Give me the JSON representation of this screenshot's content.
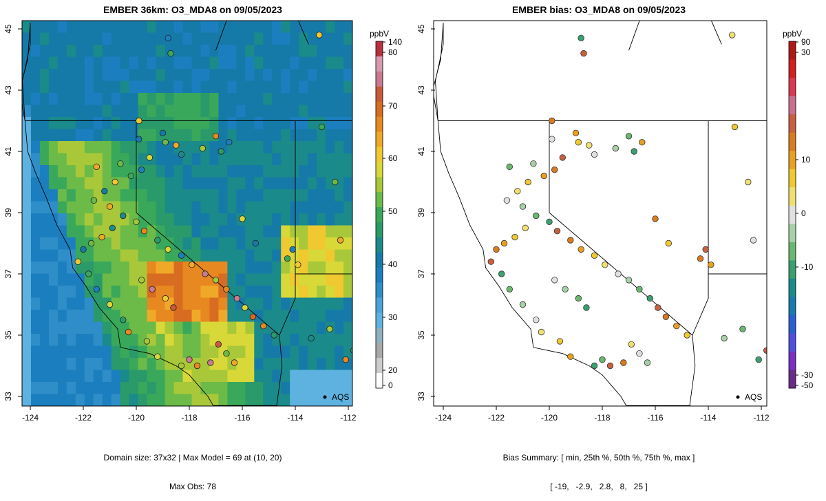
{
  "left_panel": {
    "title": "EMBER 36km: O3_MDA8 on 09/05/2023",
    "footer_line1": "Domain size: 37x32 | Max Model = 69 at (10, 20)",
    "footer_line2": "Max Obs: 78",
    "colorbar": {
      "unit": "ppbV",
      "tick_labels": [
        "140",
        "80",
        "70",
        "60",
        "50",
        "40",
        "30",
        "20",
        "0"
      ],
      "colors": [
        "#ffffff",
        "#cccccc",
        "#a8a8a8",
        "#8fb0c0",
        "#5eb2e0",
        "#4aa3d8",
        "#2f8ec8",
        "#1b7fbf",
        "#157aa8",
        "#1a8a8a",
        "#2a9a6a",
        "#3aa85a",
        "#6cba48",
        "#a8c83a",
        "#d8d838",
        "#f0c830",
        "#f0a828",
        "#e88820",
        "#d86c20",
        "#c85a3a",
        "#c87a90",
        "#d89ab0",
        "#b83040"
      ]
    },
    "map_legend": "AQS",
    "chart_data": {
      "type": "map",
      "variable": "O3_MDA8",
      "unit": "ppbV",
      "xlim": [
        -124.3,
        -111.8
      ],
      "ylim": [
        32.9,
        45.2
      ],
      "x_ticks": [
        -124,
        -122,
        -120,
        -118,
        -116,
        -114,
        -112
      ],
      "y_ticks": [
        33,
        35,
        37,
        39,
        41,
        43,
        45
      ]
    }
  },
  "right_panel": {
    "title": "EMBER bias: O3_MDA8 on 09/05/2023",
    "footer_line1": "Bias Summary: [ min, 25th %, 50th %, 75th %, max ]",
    "footer_line2": "[ -19,   -2.9,   2.8,   8,   25 ]",
    "colorbar": {
      "unit": "ppbV",
      "tick_labels": [
        "90",
        "30",
        "10",
        "0",
        "-10",
        "-30",
        "-50"
      ],
      "colors": [
        "#6a2a8a",
        "#7a30c0",
        "#5050e0",
        "#2a60d0",
        "#1a7ab0",
        "#1a8a8a",
        "#3aa070",
        "#6ab870",
        "#a8d0a8",
        "#e0e0e0",
        "#f0e070",
        "#f0c830",
        "#e8a020",
        "#d87c20",
        "#c86040",
        "#c87090",
        "#d83a50",
        "#d02020",
        "#b01818"
      ]
    },
    "map_legend": "AQS",
    "chart_data": {
      "type": "map",
      "variable": "O3_MDA8 bias",
      "unit": "ppbV",
      "xlim": [
        -124.3,
        -111.8
      ],
      "ylim": [
        32.9,
        45.2
      ],
      "x_ticks": [
        -124,
        -122,
        -120,
        -118,
        -116,
        -114,
        -112
      ],
      "y_ticks": [
        33,
        35,
        37,
        39,
        41,
        43,
        45
      ],
      "bias_summary": {
        "min": -19,
        "p25": -2.9,
        "p50": 2.8,
        "p75": 8,
        "max": 25
      }
    }
  }
}
